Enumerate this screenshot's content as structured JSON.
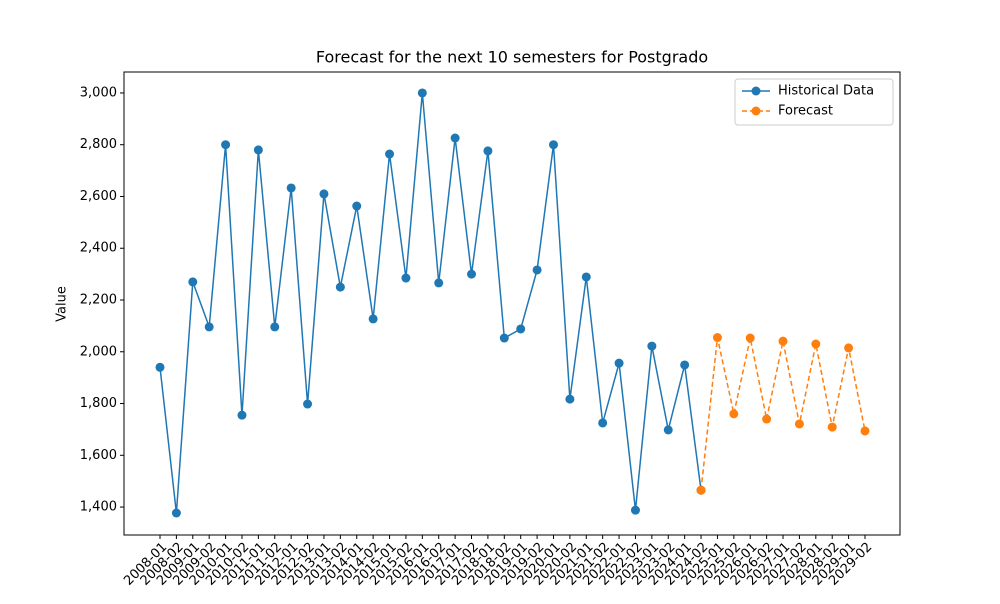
{
  "chart_data": {
    "type": "line",
    "title": "Forecast for the next 10 semesters for Postgrado",
    "y_label": "Value",
    "categories": [
      "2008-01",
      "2008-02",
      "2009-01",
      "2009-02",
      "2010-01",
      "2010-02",
      "2011-01",
      "2011-02",
      "2012-01",
      "2012-02",
      "2013-01",
      "2013-02",
      "2014-01",
      "2014-02",
      "2015-01",
      "2015-02",
      "2016-01",
      "2016-02",
      "2017-01",
      "2017-02",
      "2018-01",
      "2018-02",
      "2019-01",
      "2019-02",
      "2020-01",
      "2020-02",
      "2021-01",
      "2021-02",
      "2022-01",
      "2022-02",
      "2023-01",
      "2023-02",
      "2024-01",
      "2024-02",
      "2025-01",
      "2025-02",
      "2026-01",
      "2026-02",
      "2027-01",
      "2027-02",
      "2028-01",
      "2028-02",
      "2029-01",
      "2029-02"
    ],
    "series": [
      {
        "name": "Historical Data",
        "color": "#1f77b4",
        "linestyle": "solid",
        "values": [
          1940,
          1377,
          2270,
          2096,
          2800,
          1755,
          2780,
          2096,
          2633,
          1798,
          2610,
          2250,
          2563,
          2127,
          2764,
          2285,
          3000,
          2266,
          2826,
          2300,
          2776,
          2053,
          2088,
          2316,
          2800,
          1817,
          2289,
          1725,
          1956,
          1388,
          2022,
          1698,
          1949,
          1465,
          null,
          null,
          null,
          null,
          null,
          null,
          null,
          null,
          null,
          null
        ]
      },
      {
        "name": "Forecast",
        "color": "#ff7f0e",
        "linestyle": "dashed",
        "values": [
          null,
          null,
          null,
          null,
          null,
          null,
          null,
          null,
          null,
          null,
          null,
          null,
          null,
          null,
          null,
          null,
          null,
          null,
          null,
          null,
          null,
          null,
          null,
          null,
          null,
          null,
          null,
          null,
          null,
          null,
          null,
          null,
          null,
          1465,
          2055,
          1760,
          2053,
          1740,
          2041,
          1721,
          2030,
          1709,
          2015,
          1694
        ]
      }
    ],
    "ylim": [
      1292,
      3081
    ],
    "yticks": [
      {
        "value": 1400,
        "label": "1,400"
      },
      {
        "value": 1600,
        "label": "1,600"
      },
      {
        "value": 1800,
        "label": "1,800"
      },
      {
        "value": 2000,
        "label": "2,000"
      },
      {
        "value": 2200,
        "label": "2,200"
      },
      {
        "value": 2400,
        "label": "2,400"
      },
      {
        "value": 2600,
        "label": "2,600"
      },
      {
        "value": 2800,
        "label": "2,800"
      },
      {
        "value": 3000,
        "label": "3,000"
      }
    ],
    "grid": false,
    "legend": "upper right"
  }
}
